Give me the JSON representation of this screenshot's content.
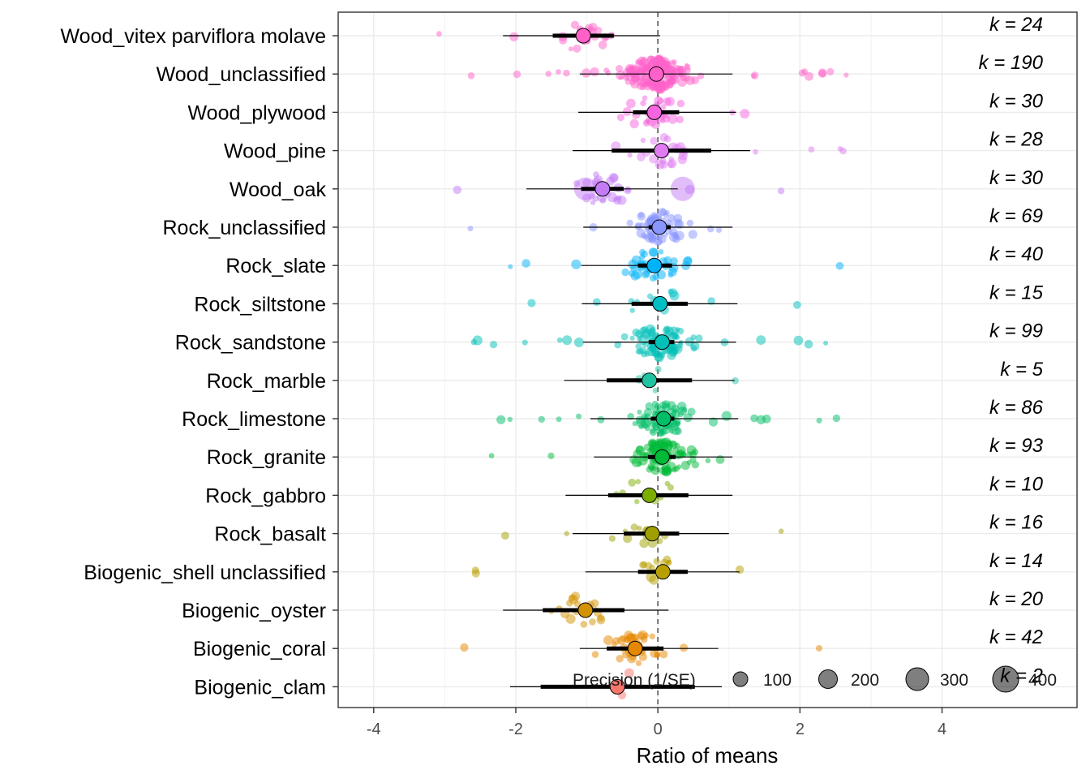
{
  "chart_data": {
    "type": "scatter",
    "title": "",
    "xlabel": "Ratio of means",
    "ylabel": "",
    "xlim": [
      -4.5,
      5.9
    ],
    "x_ticks": [
      -4,
      -2,
      0,
      2,
      4
    ],
    "x_tick_labels": [
      "-4",
      "-2",
      "0",
      "2",
      "4"
    ],
    "reference_line_x": 0,
    "grid": true,
    "categories": [
      "Wood_vitex parviflora molave",
      "Wood_unclassified",
      "Wood_plywood",
      "Wood_pine",
      "Wood_oak",
      "Rock_unclassified",
      "Rock_slate",
      "Rock_siltstone",
      "Rock_sandstone",
      "Rock_marble",
      "Rock_limestone",
      "Rock_granite",
      "Rock_gabbro",
      "Rock_basalt",
      "Biogenic_shell unclassified",
      "Biogenic_oyster",
      "Biogenic_coral",
      "Biogenic_clam"
    ],
    "colors": [
      "#FF61C9",
      "#FF61C9",
      "#F764DF",
      "#E07BF2",
      "#C37CF5",
      "#8A96FF",
      "#00B2F8",
      "#00BFC4",
      "#00C0B8",
      "#20C3A1",
      "#00BE67",
      "#00BA38",
      "#7CAE00",
      "#9FA000",
      "#B79F00",
      "#D39200",
      "#E58700",
      "#F8766D"
    ],
    "k_labels": [
      "k = 24",
      "k = 190",
      "k = 30",
      "k = 28",
      "k = 30",
      "k = 69",
      "k = 40",
      "k = 15",
      "k = 99",
      "k = 5",
      "k = 86",
      "k = 93",
      "k = 10",
      "k = 16",
      "k = 14",
      "k = 20",
      "k = 42",
      "k = 2"
    ],
    "estimates": [
      -1.05,
      -0.02,
      -0.05,
      0.05,
      -0.78,
      0.02,
      -0.05,
      0.03,
      0.06,
      -0.12,
      0.08,
      0.06,
      -0.12,
      -0.08,
      0.07,
      -1.02,
      -0.32,
      -0.57
    ],
    "ci95": [
      [
        -0.62,
        -1.48
      ],
      [
        -0.12,
        0.08
      ],
      [
        -0.35,
        0.3
      ],
      [
        -0.65,
        0.75
      ],
      [
        -1.08,
        -0.48
      ],
      [
        -0.13,
        0.18
      ],
      [
        -0.28,
        0.2
      ],
      [
        -0.37,
        0.42
      ],
      [
        -0.13,
        0.23
      ],
      [
        -0.72,
        0.48
      ],
      [
        -0.1,
        0.23
      ],
      [
        -0.14,
        0.25
      ],
      [
        -0.7,
        0.43
      ],
      [
        -0.48,
        0.3
      ],
      [
        -0.28,
        0.42
      ],
      [
        -1.62,
        -0.47
      ],
      [
        -0.72,
        0.08
      ],
      [
        -1.65,
        0.52
      ]
    ],
    "pi": [
      [
        -2.18,
        0.03
      ],
      [
        -1.1,
        1.05
      ],
      [
        -1.12,
        1.1
      ],
      [
        -1.2,
        1.3
      ],
      [
        -1.85,
        0.28
      ],
      [
        -1.05,
        1.05
      ],
      [
        -1.08,
        1.02
      ],
      [
        -1.07,
        1.12
      ],
      [
        -1.05,
        1.1
      ],
      [
        -1.32,
        1.08
      ],
      [
        -0.95,
        1.13
      ],
      [
        -0.9,
        1.05
      ],
      [
        -1.3,
        1.05
      ],
      [
        -1.2,
        1.0
      ],
      [
        -1.02,
        1.15
      ],
      [
        -2.18,
        0.15
      ],
      [
        -1.1,
        0.85
      ],
      [
        -2.08,
        0.9
      ]
    ],
    "legend": {
      "title": "Precision (1/SE)",
      "values": [
        100,
        200,
        300,
        400
      ],
      "placement": "bottom-right"
    }
  }
}
